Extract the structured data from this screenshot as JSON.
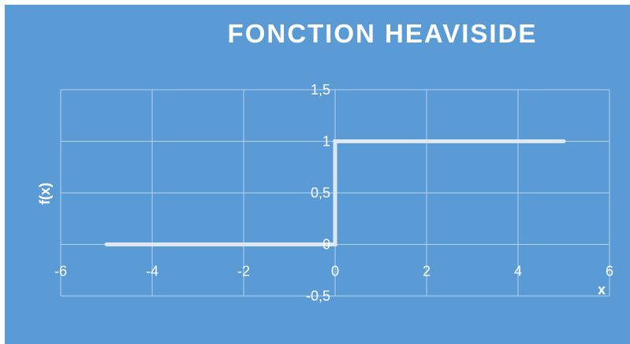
{
  "chart_data": {
    "type": "line",
    "title": "FONCTION HEAVISIDE",
    "xlabel": "x",
    "ylabel": "f(x)",
    "xlim": [
      -6,
      6
    ],
    "ylim": [
      -0.5,
      1.5
    ],
    "x_ticks": [
      -6,
      -4,
      -2,
      0,
      2,
      4,
      6
    ],
    "y_ticks": [
      -0.5,
      0,
      0.5,
      1,
      1.5
    ],
    "x_tick_labels": [
      "-6",
      "-4",
      "-2",
      "0",
      "2",
      "4",
      "6"
    ],
    "y_tick_labels": [
      "-0,5",
      "0",
      "0,5",
      "1",
      "1,5"
    ],
    "grid": true,
    "legend": "none",
    "series": [
      {
        "x": [
          -5,
          0,
          0,
          5
        ],
        "y": [
          0,
          0,
          1,
          1
        ]
      }
    ],
    "colors": {
      "background": "#5b9bd5",
      "line": "#dde8f4",
      "grid": "#b7d1ec",
      "text": "#ffffff"
    }
  }
}
